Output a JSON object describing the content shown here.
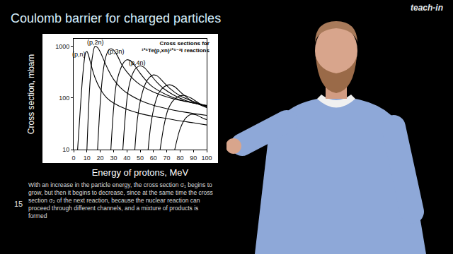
{
  "slide": {
    "title": "Coulomb barrier for charged particles",
    "logo": "teach-in",
    "caption": "With an increase in the particle energy, the cross section σ₁ begins to grow, but then it begins to decrease, since at the same time the cross section σ₂ of the next reaction, because the nuclear reaction can proceed through different channels, and a mixture of products is formed",
    "number": 15
  },
  "chart_data": {
    "type": "line",
    "title": [
      "Cross sections for",
      "¹²⁵Te(p,xn)¹²⁵⁻ˣI reactions"
    ],
    "x_label": "Energy of protons, MeV",
    "y_label": "Cross section, mbarn",
    "log": "y",
    "grid": false,
    "xlim": [
      0,
      100
    ],
    "xticks": [
      0,
      10,
      20,
      30,
      40,
      50,
      60,
      70,
      80,
      90,
      100
    ],
    "ylim": [
      10,
      1400
    ],
    "yticks": [
      10,
      100,
      1000
    ],
    "annotations": [
      {
        "text": "(p,n)",
        "x": 4,
        "y": 700
      },
      {
        "text": "(p,2n)",
        "x": 16.5,
        "y": 1200
      },
      {
        "text": "(p,3n)",
        "x": 32,
        "y": 800
      },
      {
        "text": "(p,4n)",
        "x": 48,
        "y": 480
      }
    ],
    "series": [
      {
        "color": "#000000",
        "line_style": "solid",
        "x": [
          3,
          5,
          7,
          9,
          10,
          11,
          13,
          16,
          20,
          25,
          30,
          40,
          50,
          60,
          70,
          80,
          90,
          100
        ],
        "values": [
          10,
          60,
          300,
          750,
          800,
          700,
          450,
          250,
          150,
          100,
          80,
          60,
          50,
          44,
          40,
          36,
          33,
          30
        ]
      },
      {
        "color": "#000000",
        "line_style": "solid",
        "x": [
          10,
          12,
          14,
          16,
          18,
          20,
          23,
          26,
          30,
          35,
          40,
          50,
          60,
          70,
          80,
          90,
          100
        ],
        "values": [
          10,
          150,
          600,
          1000,
          950,
          780,
          520,
          350,
          230,
          160,
          125,
          90,
          72,
          62,
          55,
          50,
          46
        ]
      },
      {
        "color": "#000000",
        "line_style": "solid",
        "x": [
          18,
          20,
          22,
          24,
          26,
          28,
          30,
          33,
          36,
          40,
          45,
          50,
          60,
          70,
          80,
          90,
          100
        ],
        "values": [
          10,
          80,
          300,
          600,
          820,
          900,
          850,
          650,
          450,
          320,
          230,
          180,
          130,
          105,
          90,
          80,
          72
        ]
      },
      {
        "color": "#000000",
        "line_style": "solid",
        "x": [
          28,
          30,
          32,
          35,
          38,
          40,
          43,
          46,
          50,
          55,
          60,
          70,
          80,
          90,
          100
        ],
        "values": [
          10,
          60,
          180,
          350,
          500,
          550,
          520,
          420,
          300,
          210,
          160,
          115,
          92,
          80,
          70
        ]
      },
      {
        "color": "#000000",
        "line_style": "solid",
        "x": [
          37,
          39,
          41,
          44,
          47,
          50,
          53,
          57,
          62,
          68,
          75,
          85,
          100
        ],
        "values": [
          10,
          50,
          140,
          280,
          380,
          420,
          390,
          300,
          210,
          150,
          115,
          88,
          70
        ]
      },
      {
        "color": "#000000",
        "line_style": "solid",
        "x": [
          46,
          48,
          51,
          54,
          57,
          60,
          63,
          67,
          72,
          80,
          90,
          100
        ],
        "values": [
          10,
          40,
          110,
          190,
          250,
          280,
          265,
          210,
          155,
          110,
          85,
          70
        ]
      },
      {
        "color": "#000000",
        "line_style": "solid",
        "x": [
          56,
          58,
          61,
          64,
          68,
          72,
          76,
          81,
          88,
          100
        ],
        "values": [
          10,
          30,
          75,
          125,
          165,
          180,
          165,
          125,
          90,
          65
        ]
      },
      {
        "color": "#000000",
        "line_style": "solid",
        "x": [
          65,
          68,
          71,
          75,
          79,
          83,
          88,
          94,
          100
        ],
        "values": [
          10,
          30,
          60,
          90,
          108,
          112,
          100,
          80,
          66
        ]
      },
      {
        "color": "#000000",
        "line_style": "solid",
        "x": [
          76,
          80,
          84,
          88,
          92,
          96,
          100
        ],
        "values": [
          10,
          25,
          40,
          48,
          47,
          42,
          38
        ]
      }
    ]
  }
}
